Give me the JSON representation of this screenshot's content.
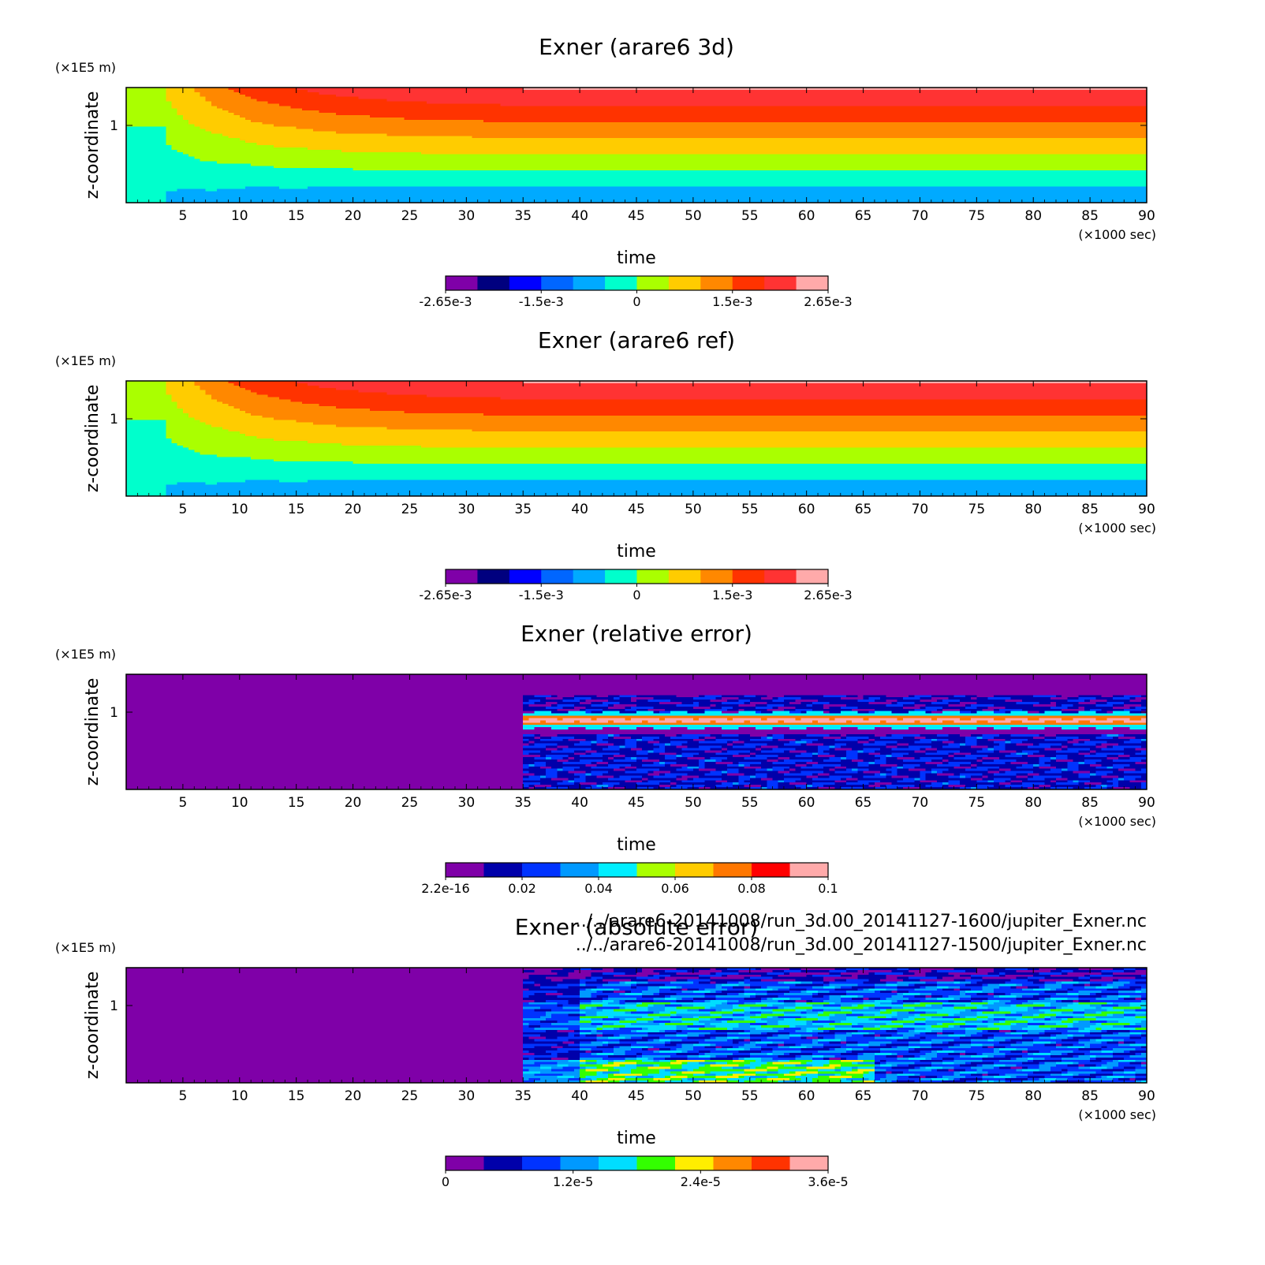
{
  "chart_data": [
    {
      "type": "heatmap",
      "title": "Exner (arare6 3d)",
      "xlabel": "time",
      "xunit": "(×1000 sec)",
      "ylabel": "z-coordinate",
      "yunit": "(×1E5 m)",
      "xlim": [
        0,
        90
      ],
      "xticks": [
        "5",
        "10",
        "15",
        "20",
        "25",
        "30",
        "35",
        "40",
        "45",
        "50",
        "55",
        "60",
        "65",
        "70",
        "75",
        "80",
        "85",
        "90"
      ],
      "yticks": [
        "1"
      ],
      "colorbar": {
        "colors": [
          "#7f00a8",
          "#00007f",
          "#0000ff",
          "#0066ff",
          "#00aaff",
          "#00ffcc",
          "#aaff00",
          "#ffcc00",
          "#ff8800",
          "#ff3300",
          "#ff3333",
          "#ffaaaa"
        ],
        "tick_labels": [
          "-2.65e-3",
          "-1.5e-3",
          "0",
          "1.5e-3",
          "2.65e-3"
        ]
      },
      "pattern": "stratified"
    },
    {
      "type": "heatmap",
      "title": "Exner (arare6 ref)",
      "xlabel": "time",
      "xunit": "(×1000 sec)",
      "ylabel": "z-coordinate",
      "yunit": "(×1E5 m)",
      "xlim": [
        0,
        90
      ],
      "xticks": [
        "5",
        "10",
        "15",
        "20",
        "25",
        "30",
        "35",
        "40",
        "45",
        "50",
        "55",
        "60",
        "65",
        "70",
        "75",
        "80",
        "85",
        "90"
      ],
      "yticks": [
        "1"
      ],
      "colorbar": {
        "colors": [
          "#7f00a8",
          "#00007f",
          "#0000ff",
          "#0066ff",
          "#00aaff",
          "#00ffcc",
          "#aaff00",
          "#ffcc00",
          "#ff8800",
          "#ff3300",
          "#ff3333",
          "#ffaaaa"
        ],
        "tick_labels": [
          "-2.65e-3",
          "-1.5e-3",
          "0",
          "1.5e-3",
          "2.65e-3"
        ]
      },
      "pattern": "stratified"
    },
    {
      "type": "heatmap",
      "title": "Exner (relative error)",
      "xlabel": "time",
      "xunit": "(×1000 sec)",
      "ylabel": "z-coordinate",
      "yunit": "(×1E5 m)",
      "xlim": [
        0,
        90
      ],
      "xticks": [
        "5",
        "10",
        "15",
        "20",
        "25",
        "30",
        "35",
        "40",
        "45",
        "50",
        "55",
        "60",
        "65",
        "70",
        "75",
        "80",
        "85",
        "90"
      ],
      "yticks": [
        "1"
      ],
      "colorbar": {
        "colors": [
          "#7f00a8",
          "#0000aa",
          "#0033ff",
          "#0099ff",
          "#00eeff",
          "#aaff00",
          "#ffcc00",
          "#ff7700",
          "#ff0000",
          "#ffaaaa"
        ],
        "tick_labels": [
          "2.2e-16",
          "0.02",
          "0.04",
          "0.06",
          "0.08",
          "0.1"
        ]
      },
      "pattern": "relative"
    },
    {
      "type": "heatmap",
      "title": "Exner (absolute error)",
      "xlabel": "time",
      "xunit": "(×1000 sec)",
      "ylabel": "z-coordinate",
      "yunit": "(×1E5 m)",
      "xlim": [
        0,
        90
      ],
      "xticks": [
        "5",
        "10",
        "15",
        "20",
        "25",
        "30",
        "35",
        "40",
        "45",
        "50",
        "55",
        "60",
        "65",
        "70",
        "75",
        "80",
        "85",
        "90"
      ],
      "yticks": [
        "1"
      ],
      "colorbar": {
        "colors": [
          "#7f00a8",
          "#0000aa",
          "#0033ff",
          "#0099ff",
          "#00ddff",
          "#33ff00",
          "#ffee00",
          "#ff8800",
          "#ff3300",
          "#ffaaaa"
        ],
        "tick_labels": [
          "0",
          "1.2e-5",
          "2.4e-5",
          "3.6e-5"
        ]
      },
      "pattern": "absolute"
    }
  ],
  "file_paths": [
    "../../arare6-20141008/run_3d.00_20141127-1600/jupiter_Exner.nc",
    "../../arare6-20141008/run_3d.00_20141127-1500/jupiter_Exner.nc"
  ]
}
